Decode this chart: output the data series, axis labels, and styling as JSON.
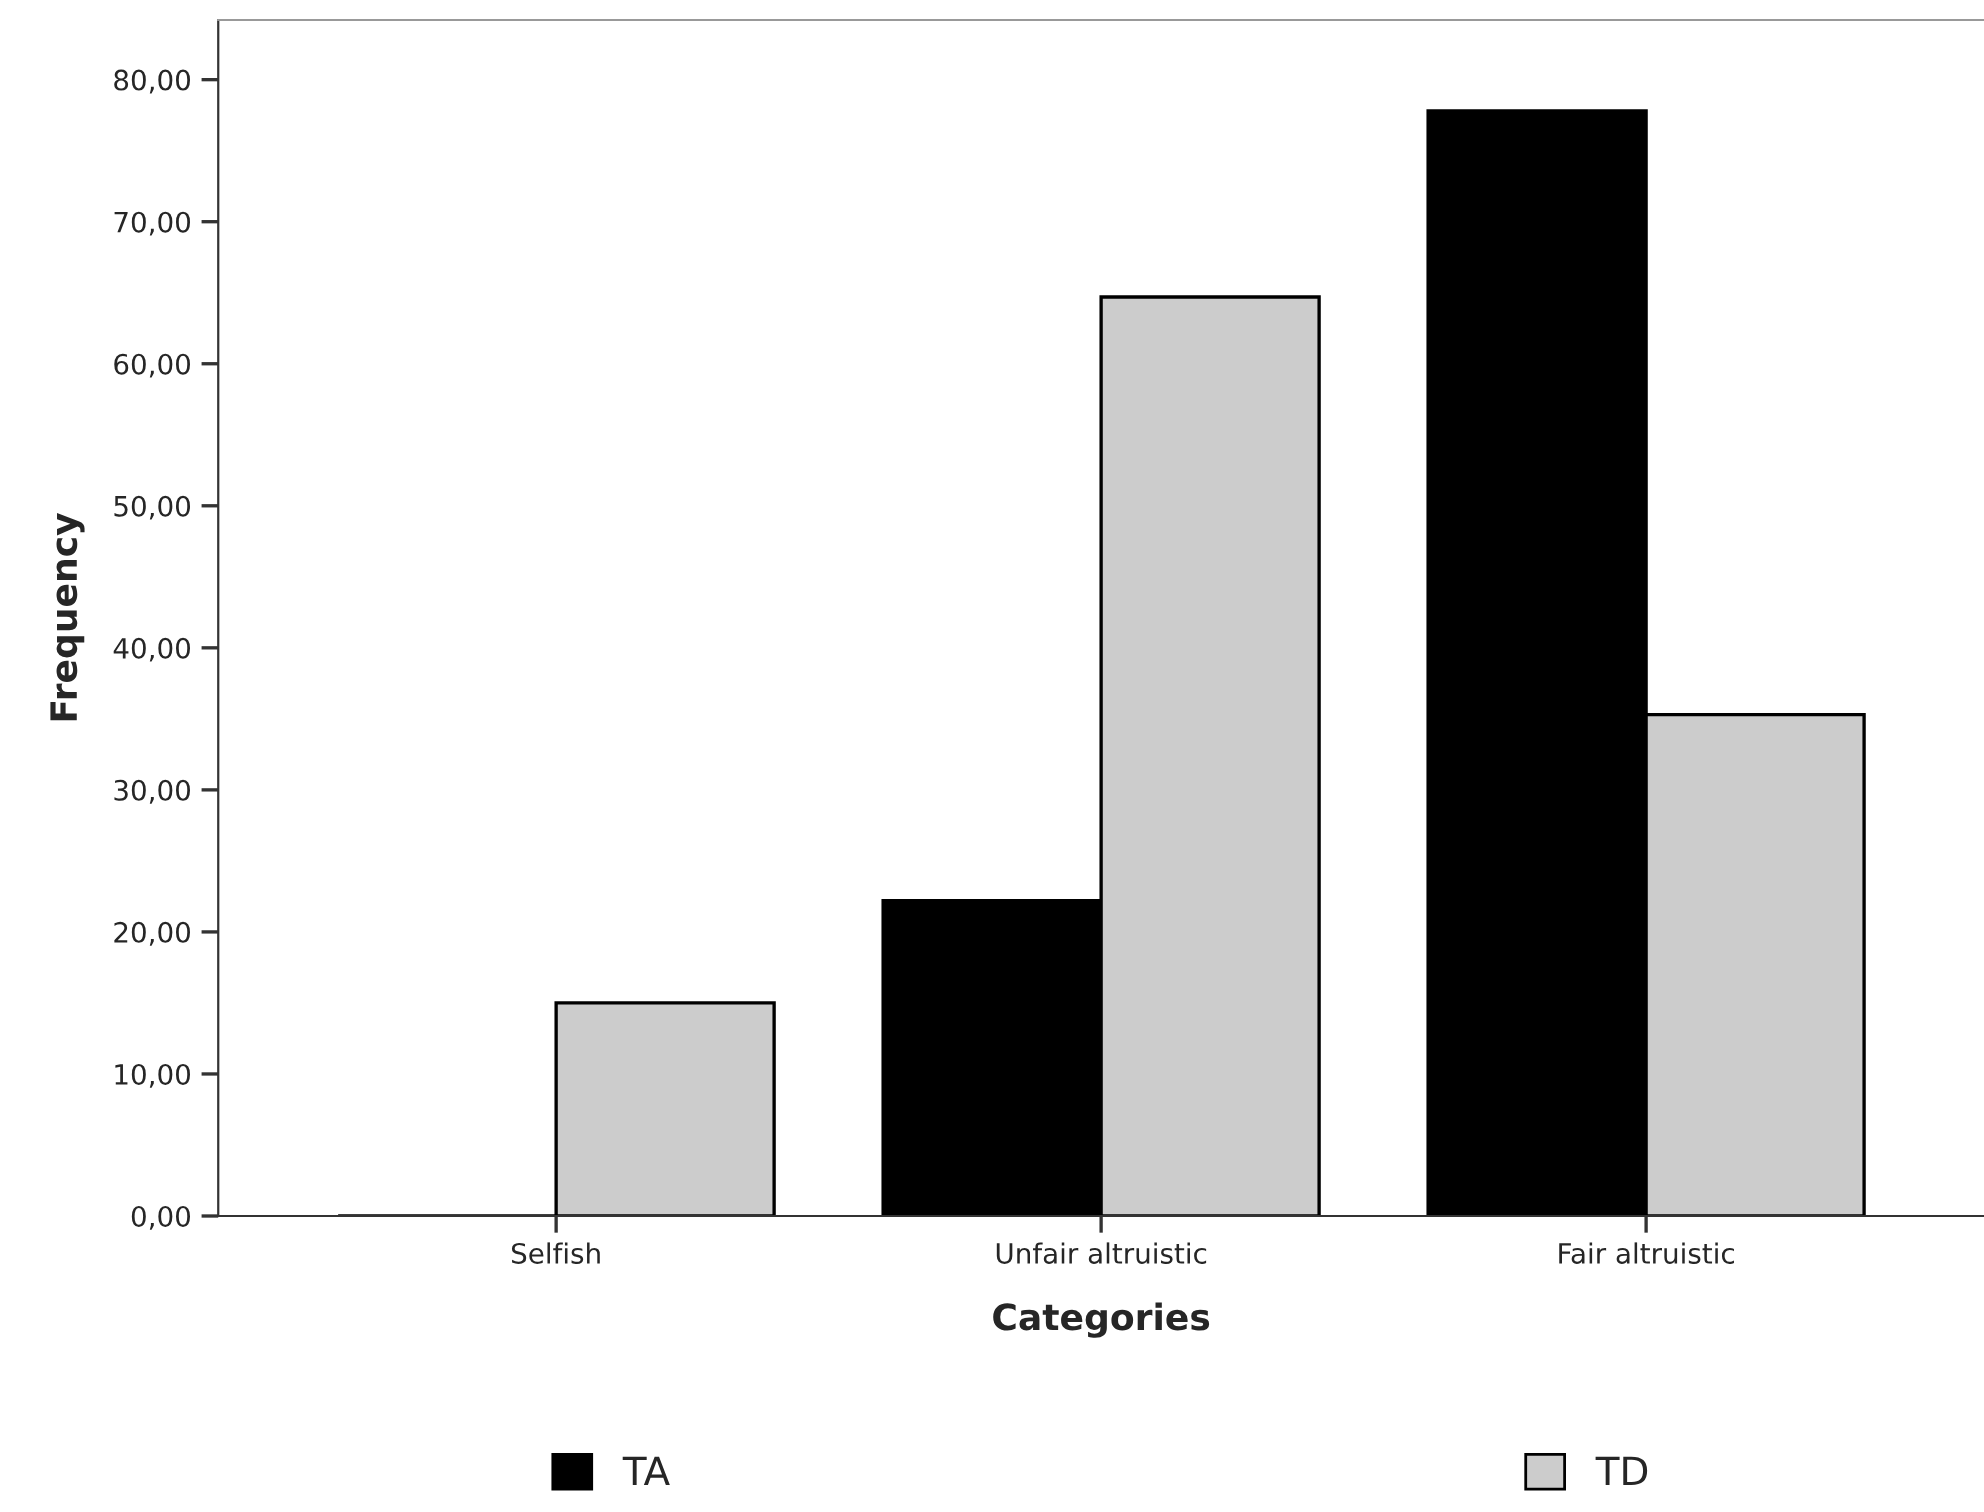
{
  "chart_data": {
    "type": "bar",
    "xlabel": "Categories",
    "ylabel": "Frequency",
    "categories": [
      "Selfish",
      "Unfair altruistic",
      "Fair altruistic"
    ],
    "series": [
      {
        "name": "TA",
        "color": "#000000",
        "values": [
          0,
          22.2,
          77.8
        ]
      },
      {
        "name": "TD",
        "color": "#cccccc",
        "values": [
          15.0,
          64.7,
          35.3
        ]
      }
    ],
    "ylim": [
      0,
      84.2
    ],
    "yticks": [
      {
        "value": 0,
        "label": "0,00"
      },
      {
        "value": 10,
        "label": "10,00"
      },
      {
        "value": 20,
        "label": "20,00"
      },
      {
        "value": 30,
        "label": "30,00"
      },
      {
        "value": 40,
        "label": "40,00"
      },
      {
        "value": 50,
        "label": "50,00"
      },
      {
        "value": 60,
        "label": "60,00"
      },
      {
        "value": 70,
        "label": "70,00"
      },
      {
        "value": 80,
        "label": "80,00"
      }
    ],
    "grid": false,
    "legend": "bottom"
  }
}
